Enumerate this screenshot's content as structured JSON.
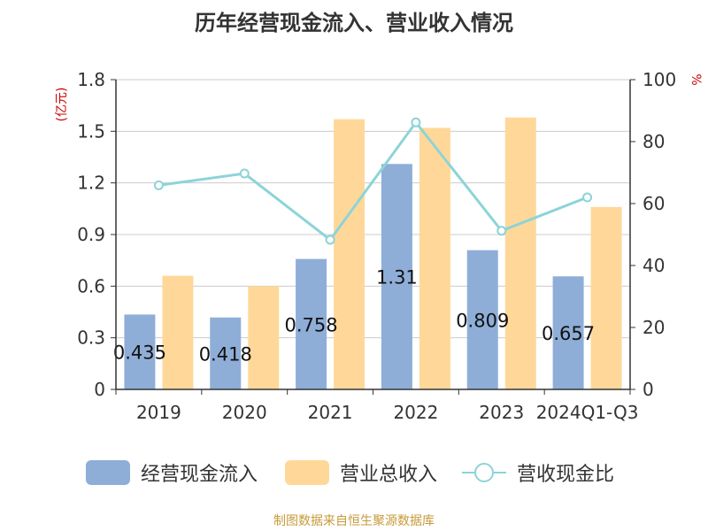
{
  "title": "历年经营现金流入、营业收入情况",
  "source": "制图数据来自恒生聚源数据库",
  "colors": {
    "cash_inflow": "#8eaed8",
    "revenue": "#ffd899",
    "ratio": "#8cd4d8",
    "unit": "#cc0000",
    "axis": "#333333",
    "grid": "#cccccc"
  },
  "chart_data": {
    "type": "bar",
    "title": "历年经营现金流入、营业收入情况",
    "categories": [
      "2019",
      "2020",
      "2021",
      "2022",
      "2023",
      "2024Q1-Q3"
    ],
    "y_left": {
      "unit": "(亿元)",
      "ylim": [
        0,
        1.8
      ],
      "ticks": [
        "0",
        "0.3",
        "0.6",
        "0.9",
        "1.2",
        "1.5",
        "1.8"
      ]
    },
    "y_right": {
      "unit": "%",
      "ylim": [
        0,
        100
      ],
      "ticks": [
        "0",
        "20",
        "40",
        "60",
        "80",
        "100"
      ]
    },
    "grid": true,
    "legend_position": "bottom",
    "series": [
      {
        "name": "经营现金流入",
        "type": "bar",
        "axis": "left",
        "values": [
          0.435,
          0.418,
          0.758,
          1.31,
          0.809,
          0.657
        ],
        "labels": [
          "0.435",
          "0.418",
          "0.758",
          "1.31",
          "0.809",
          "0.657"
        ]
      },
      {
        "name": "营业总收入",
        "type": "bar",
        "axis": "left",
        "values": [
          0.66,
          0.6,
          1.57,
          1.52,
          1.58,
          1.06
        ]
      },
      {
        "name": "营收现金比",
        "type": "line",
        "axis": "right",
        "values": [
          65.9,
          69.7,
          48.3,
          86.2,
          51.2,
          62.0
        ]
      }
    ]
  }
}
